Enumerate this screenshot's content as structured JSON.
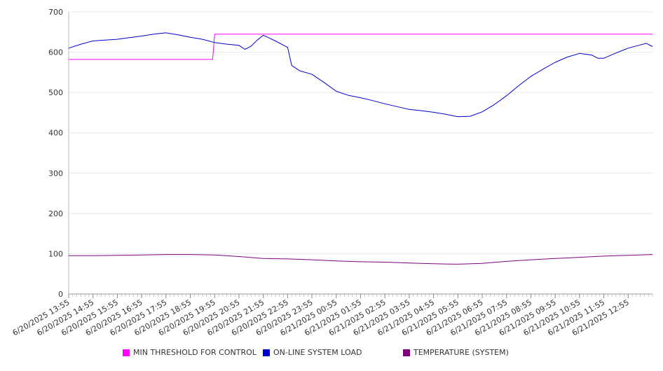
{
  "chart_data": {
    "type": "line",
    "title": "",
    "xlabel": "",
    "ylabel": "",
    "ylim": [
      0,
      700
    ],
    "grid": true,
    "legend_position": "bottom",
    "yticks": [
      0,
      100,
      200,
      300,
      400,
      500,
      600,
      700
    ],
    "x_tick_labels": [
      "6/20/2025 13:55",
      "6/20/2025 14:55",
      "6/20/2025 15:55",
      "6/20/2025 16:55",
      "6/20/2025 17:55",
      "6/20/2025 18:55",
      "6/20/2025 19:55",
      "6/20/2025 20:55",
      "6/20/2025 21:55",
      "6/20/2025 22:55",
      "6/20/2025 23:55",
      "6/21/2025 00:55",
      "6/21/2025 01:55",
      "6/21/2025 02:55",
      "6/21/2025 03:55",
      "6/21/2025 04:55",
      "6/21/2025 05:55",
      "6/21/2025 06:55",
      "6/21/2025 07:55",
      "6/21/2025 08:55",
      "6/21/2025 09:55",
      "6/21/2025 10:55",
      "6/21/2025 11:55",
      "6/21/2025 12:55"
    ],
    "x_range": [
      "6/20/2025 13:55",
      "6/21/2025 13:55"
    ],
    "series": [
      {
        "name": "MIN THRESHOLD FOR CONTROL",
        "color": "#ff00ff",
        "points": [
          [
            "6/20/2025 13:55",
            582
          ],
          [
            "6/20/2025 19:50",
            582
          ],
          [
            "6/20/2025 19:55",
            645
          ],
          [
            "6/21/2025 13:55",
            645
          ]
        ]
      },
      {
        "name": "ON-LINE SYSTEM LOAD",
        "color": "#0000cc",
        "points": [
          [
            "6/20/2025 13:55",
            610
          ],
          [
            "6/20/2025 14:25",
            620
          ],
          [
            "6/20/2025 14:55",
            628
          ],
          [
            "6/20/2025 15:25",
            630
          ],
          [
            "6/20/2025 15:55",
            632
          ],
          [
            "6/20/2025 16:25",
            636
          ],
          [
            "6/20/2025 16:55",
            640
          ],
          [
            "6/20/2025 17:25",
            645
          ],
          [
            "6/20/2025 17:55",
            648
          ],
          [
            "6/20/2025 18:25",
            643
          ],
          [
            "6/20/2025 18:55",
            637
          ],
          [
            "6/20/2025 19:25",
            632
          ],
          [
            "6/20/2025 19:55",
            624
          ],
          [
            "6/20/2025 20:25",
            620
          ],
          [
            "6/20/2025 20:55",
            617
          ],
          [
            "6/20/2025 21:10",
            607
          ],
          [
            "6/20/2025 21:25",
            615
          ],
          [
            "6/20/2025 21:40",
            630
          ],
          [
            "6/20/2025 21:55",
            642
          ],
          [
            "6/20/2025 22:25",
            628
          ],
          [
            "6/20/2025 22:55",
            612
          ],
          [
            "6/20/2025 23:05",
            567
          ],
          [
            "6/20/2025 23:25",
            554
          ],
          [
            "6/20/2025 23:55",
            545
          ],
          [
            "6/21/2025 00:25",
            525
          ],
          [
            "6/21/2025 00:55",
            503
          ],
          [
            "6/21/2025 01:25",
            493
          ],
          [
            "6/21/2025 01:55",
            487
          ],
          [
            "6/21/2025 02:25",
            480
          ],
          [
            "6/21/2025 02:55",
            472
          ],
          [
            "6/21/2025 03:25",
            465
          ],
          [
            "6/21/2025 03:55",
            458
          ],
          [
            "6/21/2025 04:25",
            455
          ],
          [
            "6/21/2025 04:55",
            451
          ],
          [
            "6/21/2025 05:25",
            446
          ],
          [
            "6/21/2025 05:55",
            440
          ],
          [
            "6/21/2025 06:25",
            441
          ],
          [
            "6/21/2025 06:55",
            452
          ],
          [
            "6/21/2025 07:25",
            470
          ],
          [
            "6/21/2025 07:55",
            492
          ],
          [
            "6/21/2025 08:25",
            517
          ],
          [
            "6/21/2025 08:55",
            540
          ],
          [
            "6/21/2025 09:25",
            558
          ],
          [
            "6/21/2025 09:55",
            575
          ],
          [
            "6/21/2025 10:25",
            588
          ],
          [
            "6/21/2025 10:55",
            597
          ],
          [
            "6/21/2025 11:25",
            593
          ],
          [
            "6/21/2025 11:40",
            585
          ],
          [
            "6/21/2025 11:55",
            585
          ],
          [
            "6/21/2025 12:25",
            598
          ],
          [
            "6/21/2025 12:55",
            610
          ],
          [
            "6/21/2025 13:25",
            618
          ],
          [
            "6/21/2025 13:40",
            622
          ],
          [
            "6/21/2025 13:55",
            614
          ]
        ]
      },
      {
        "name": "TEMPERATURE (SYSTEM)",
        "color": "#800080",
        "points": [
          [
            "6/20/2025 13:55",
            95
          ],
          [
            "6/20/2025 14:55",
            95
          ],
          [
            "6/20/2025 15:55",
            96
          ],
          [
            "6/20/2025 16:55",
            97
          ],
          [
            "6/20/2025 17:55",
            98
          ],
          [
            "6/20/2025 18:55",
            98
          ],
          [
            "6/20/2025 19:55",
            97
          ],
          [
            "6/20/2025 20:55",
            93
          ],
          [
            "6/20/2025 21:55",
            88
          ],
          [
            "6/20/2025 22:55",
            87
          ],
          [
            "6/20/2025 23:55",
            85
          ],
          [
            "6/21/2025 00:55",
            82
          ],
          [
            "6/21/2025 01:55",
            80
          ],
          [
            "6/21/2025 02:55",
            79
          ],
          [
            "6/21/2025 03:55",
            77
          ],
          [
            "6/21/2025 04:55",
            75
          ],
          [
            "6/21/2025 05:55",
            74
          ],
          [
            "6/21/2025 06:55",
            76
          ],
          [
            "6/21/2025 07:55",
            81
          ],
          [
            "6/21/2025 08:55",
            85
          ],
          [
            "6/21/2025 09:55",
            88
          ],
          [
            "6/21/2025 10:55",
            91
          ],
          [
            "6/21/2025 11:55",
            94
          ],
          [
            "6/21/2025 12:55",
            96
          ],
          [
            "6/21/2025 13:55",
            98
          ]
        ]
      }
    ]
  }
}
